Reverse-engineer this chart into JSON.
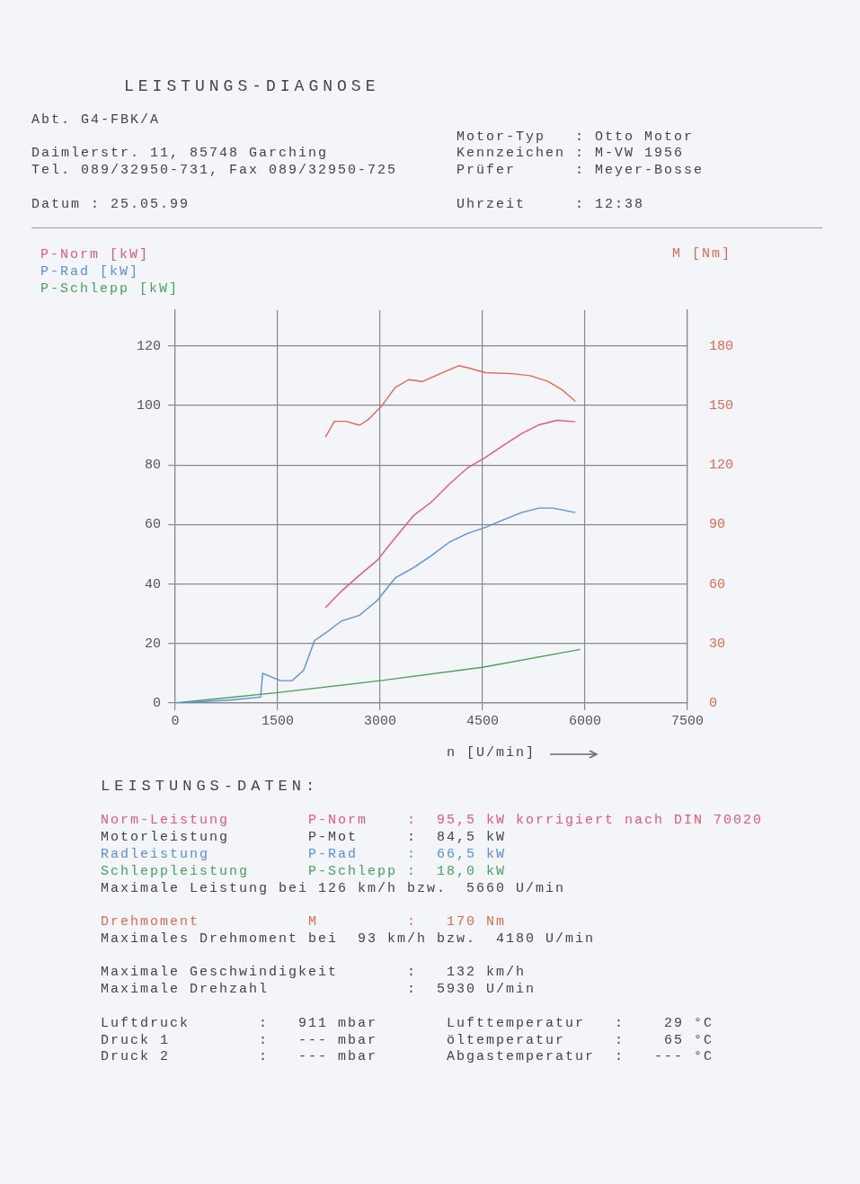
{
  "chart_data": {
    "type": "line",
    "title": "LEISTUNGS-DIAGNOSE",
    "xlabel": "n [U/min]",
    "xlim": [
      0,
      7500
    ],
    "xticks": [
      0,
      1500,
      3000,
      4500,
      6000,
      7500
    ],
    "ylim": [
      0,
      132
    ],
    "yticks": [
      0,
      20,
      40,
      60,
      80,
      100,
      120
    ],
    "y2lim": [
      0,
      198
    ],
    "y2ticks": [
      0,
      30,
      60,
      90,
      120,
      150,
      180
    ],
    "grid": true,
    "legend": "top left",
    "marker": "none",
    "line_style": "solid",
    "annotations": [
      "Abt. G4-FBK/A",
      "Daimlerstr. 11, 85748 Garching",
      "Tel. 089/32950-731, Fax 089/32950-725",
      "Datum : 25.05.99",
      "Motor-Typ   : Otto Motor",
      "Kennzeichen : M-VW 1956",
      "Prüfer      : Meyer-Bosse",
      "Uhrzeit     : 12:38",
      "LEISTUNGS-DATEN:",
      "Norm-Leistung        P-Norm    :  95,5 kW korrigiert nach DIN 70020",
      "Motorleistung        P-Mot     :  84,5 kW",
      "Radleistung          P-Rad     :  66,5 kW",
      "Schleppleistung      P-Schlepp :  18,0 kW",
      "Maximale Leistung bei 126 km/h bzw.  5660 U/min",
      "Drehmoment           M         :   170 Nm",
      "Maximales Drehmoment bei  93 km/h bzw.  4180 U/min",
      "Maximale Geschwindigkeit       :   132 km/h",
      "Maximale Drehzahl              :  5930 U/min",
      "Luftdruck       :   911 mbar",
      "Druck 1         :   --- mbar",
      "Druck 2         :   --- mbar",
      "Lufttemperatur   :    29 °C",
      "öltemperatur     :    65 °C",
      "Abgastemperatur  :   --- °C"
    ],
    "series": [
      {
        "name": "P-Norm [kW]",
        "color": "#e05a78",
        "x": [
          2200,
          2430,
          2700,
          2960,
          3220,
          3490,
          3750,
          4010,
          4280,
          4540,
          4800,
          5070,
          5330,
          5590,
          5860
        ],
        "values": [
          32,
          37.5,
          43,
          48,
          55.5,
          63,
          67.5,
          73.5,
          79,
          82.5,
          86.5,
          90.5,
          93.5,
          95,
          94.5
        ]
      },
      {
        "name": "P-Rad [kW]",
        "color": "#5b8fd8",
        "x": [
          0,
          800,
          1250,
          1280,
          1380,
          1540,
          1710,
          1880,
          2040,
          2200,
          2430,
          2700,
          2960,
          3220,
          3490,
          3750,
          4010,
          4280,
          4540,
          4800,
          5070,
          5330,
          5530,
          5860
        ],
        "values": [
          0,
          1,
          2,
          10,
          9,
          7.5,
          7.5,
          11,
          21,
          23.5,
          27.5,
          29.5,
          34.5,
          42,
          45.5,
          49.5,
          54,
          57,
          59,
          61.5,
          64,
          65.5,
          65.5,
          64
        ]
      },
      {
        "name": "P-Schlepp [kW]",
        "color": "#4aa060",
        "x": [
          0,
          1500,
          3000,
          4500,
          5930
        ],
        "values": [
          0,
          3.5,
          7.5,
          12,
          18
        ]
      },
      {
        "name": "M [Nm]",
        "color": "#e06a50",
        "axis": "y2",
        "x": [
          2200,
          2330,
          2500,
          2700,
          2830,
          3030,
          3220,
          3420,
          3620,
          3880,
          4150,
          4280,
          4540,
          4930,
          5200,
          5460,
          5660,
          5860
        ],
        "values": [
          134,
          142,
          142,
          140,
          143,
          150,
          159,
          163,
          162,
          166,
          170,
          169,
          166.5,
          166,
          165,
          162,
          158,
          152
        ]
      }
    ]
  }
}
